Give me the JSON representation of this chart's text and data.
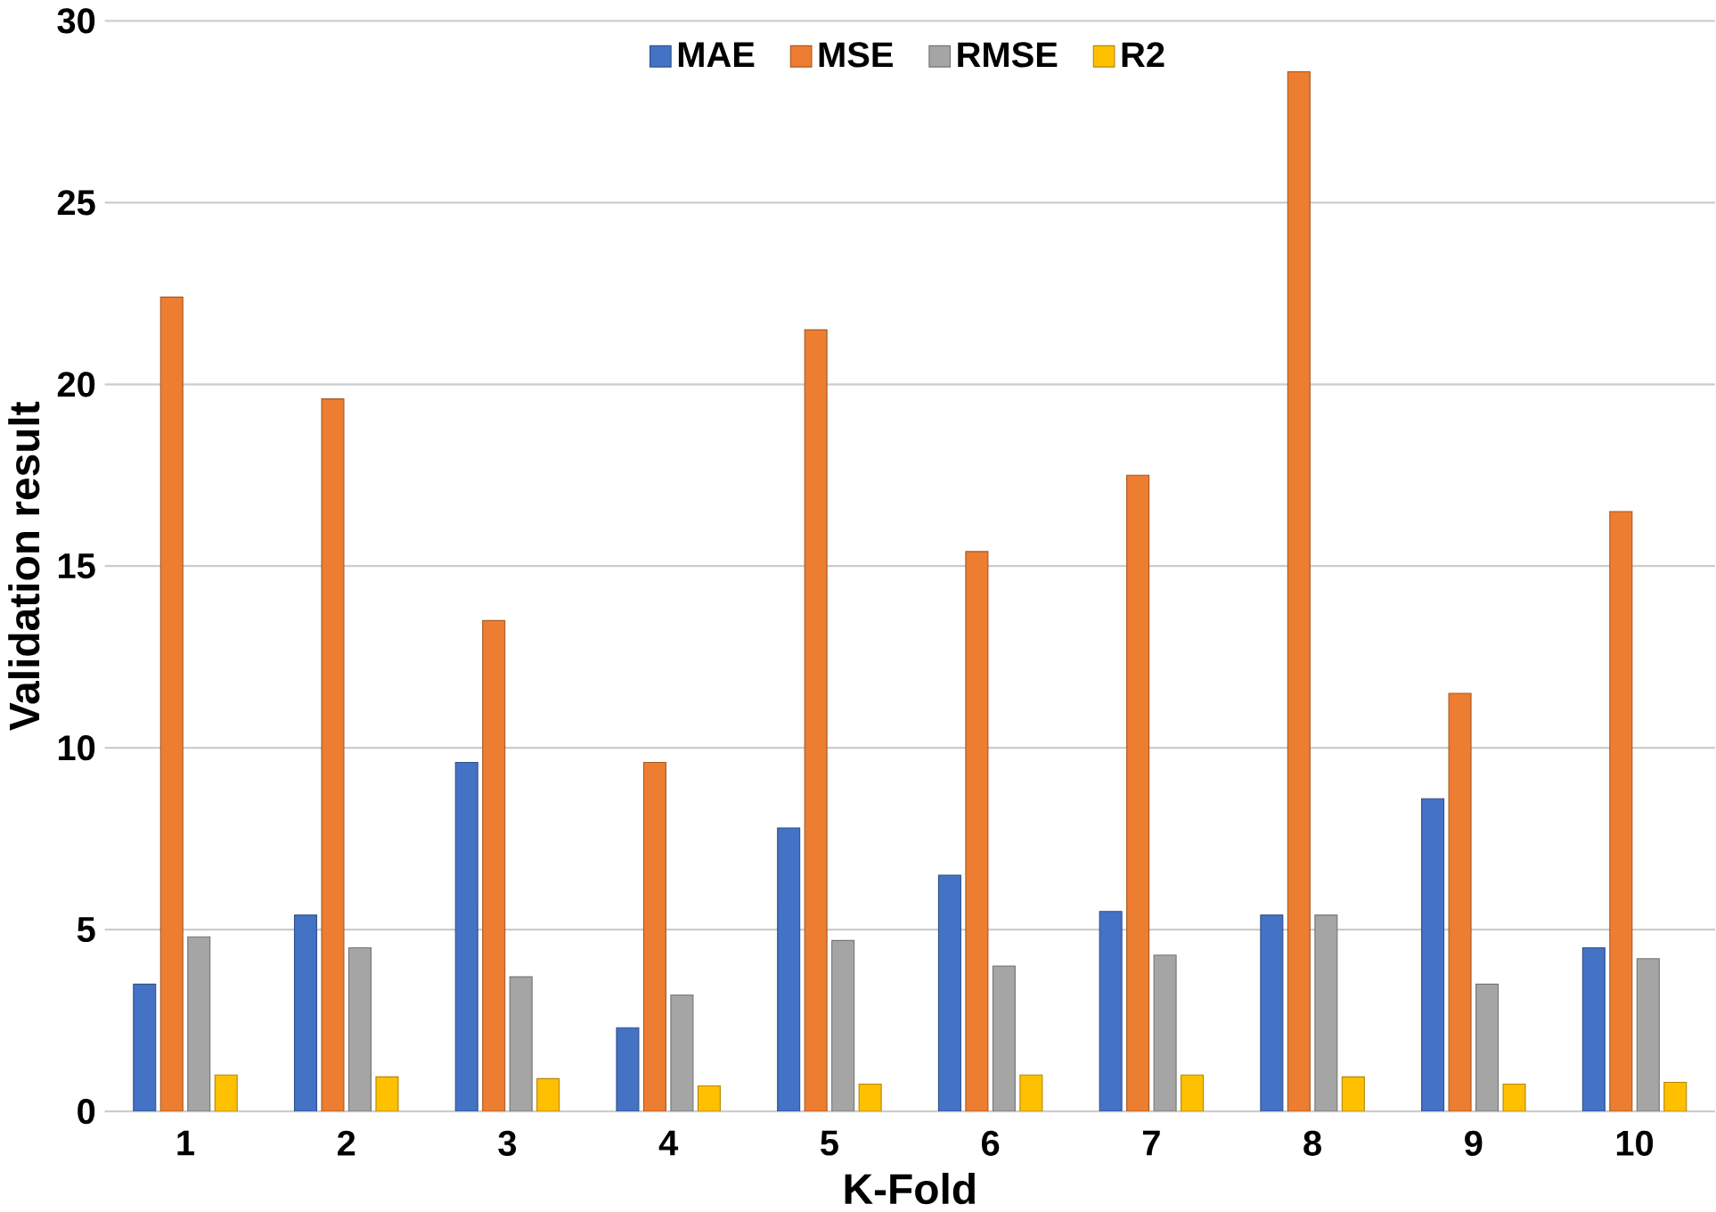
{
  "chart_data": {
    "type": "bar",
    "xlabel": "K-Fold",
    "ylabel": "Validation result",
    "categories": [
      "1",
      "2",
      "3",
      "4",
      "5",
      "6",
      "7",
      "8",
      "9",
      "10"
    ],
    "series": [
      {
        "name": "MAE",
        "color": "#4472c4",
        "values": [
          3.5,
          5.4,
          9.6,
          2.3,
          7.8,
          6.5,
          5.5,
          5.4,
          8.6,
          4.5
        ]
      },
      {
        "name": "MSE",
        "color": "#ed7d31",
        "values": [
          22.4,
          19.6,
          13.5,
          9.6,
          21.5,
          15.4,
          17.5,
          28.6,
          11.5,
          16.5
        ]
      },
      {
        "name": "RMSE",
        "color": "#a5a5a5",
        "values": [
          4.8,
          4.5,
          3.7,
          3.2,
          4.7,
          4.0,
          4.3,
          5.4,
          3.5,
          4.2
        ]
      },
      {
        "name": "R2",
        "color": "#ffc000",
        "values": [
          1.0,
          0.95,
          0.9,
          0.7,
          0.75,
          1.0,
          1.0,
          0.95,
          0.75,
          0.8
        ]
      }
    ],
    "ylim": [
      0,
      30
    ],
    "yticks": [
      0,
      5,
      10,
      15,
      20,
      25,
      30
    ],
    "grid": "y",
    "legend": "top"
  }
}
